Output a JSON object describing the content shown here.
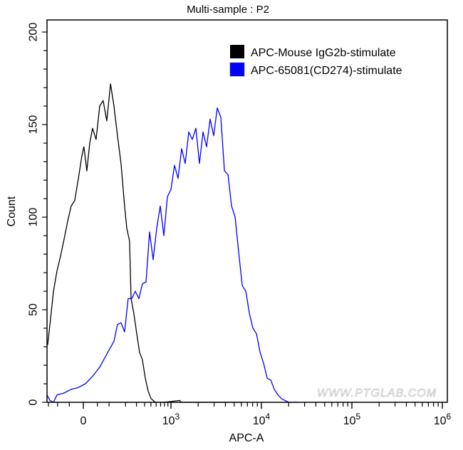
{
  "chart_data": {
    "type": "line",
    "title": "Multi-sample : P2",
    "xlabel": "APC-A",
    "ylabel": "Count",
    "xscale": "biexponential",
    "ylim": [
      0,
      200
    ],
    "yticks": [
      "0",
      "50",
      "100",
      "150",
      "200"
    ],
    "xticks": [
      {
        "value": 0,
        "label": "0",
        "exp": ""
      },
      {
        "value": 1000,
        "label": "10",
        "exp": "3"
      },
      {
        "value": 10000,
        "label": "10",
        "exp": "4"
      },
      {
        "value": 100000,
        "label": "10",
        "exp": "5"
      },
      {
        "value": 1000000,
        "label": "10",
        "exp": "6"
      }
    ],
    "grid": false,
    "legend_position": "top-right",
    "watermark": "WWW.PTGLAB.COM",
    "series": [
      {
        "name": "APC-Mouse IgG2b-stimulate",
        "color": "#000000",
        "x": [
          -155,
          -141,
          -121,
          -103,
          -86,
          -71,
          -56,
          -43,
          -30,
          -17,
          -5,
          2,
          12,
          22,
          32,
          45,
          59,
          73,
          89,
          107,
          125,
          145,
          168,
          193,
          210,
          233,
          246,
          273,
          303,
          335,
          371,
          411,
          454,
          502,
          581,
          800,
          1250,
          1300,
          3000,
          6000
        ],
        "y": [
          31,
          42,
          60,
          71,
          79,
          88,
          98,
          106,
          109,
          121,
          133,
          138,
          125,
          140,
          148,
          142,
          160,
          163,
          152,
          172,
          160,
          144,
          129,
          106,
          94,
          87,
          56,
          48,
          37,
          27,
          23,
          13,
          6,
          2,
          0,
          0,
          1,
          0,
          0,
          0
        ]
      },
      {
        "name": "APC-65081(CD274)-stimulate",
        "color": "#0000ff",
        "x": [
          -160,
          -141,
          -121,
          -103,
          -71,
          -43,
          -17,
          7,
          32,
          59,
          89,
          125,
          145,
          168,
          193,
          221,
          253,
          287,
          327,
          371,
          421,
          477,
          540,
          612,
          692,
          783,
          885,
          1000,
          1095,
          1199,
          1312,
          1437,
          1574,
          1723,
          1887,
          2066,
          2262,
          2477,
          2712,
          2970,
          3252,
          3561,
          3899,
          4269,
          4675,
          5119,
          5605,
          6137,
          6720,
          7359,
          8058,
          8823,
          9661,
          10580,
          11580,
          12680,
          13890,
          15210,
          16650,
          18230,
          19960,
          25000
        ],
        "y": [
          4,
          1,
          0,
          4,
          5,
          7,
          8,
          10,
          14,
          19,
          26,
          33,
          42,
          43,
          38,
          56,
          56,
          60,
          56,
          64,
          65,
          92,
          77,
          94,
          106,
          90,
          111,
          115,
          128,
          121,
          137,
          129,
          146,
          142,
          148,
          129,
          146,
          138,
          153,
          144,
          159,
          154,
          125,
          123,
          106,
          100,
          81,
          63,
          60,
          48,
          40,
          37,
          27,
          21,
          13,
          12,
          7,
          4,
          2,
          1,
          0,
          0
        ]
      }
    ]
  }
}
